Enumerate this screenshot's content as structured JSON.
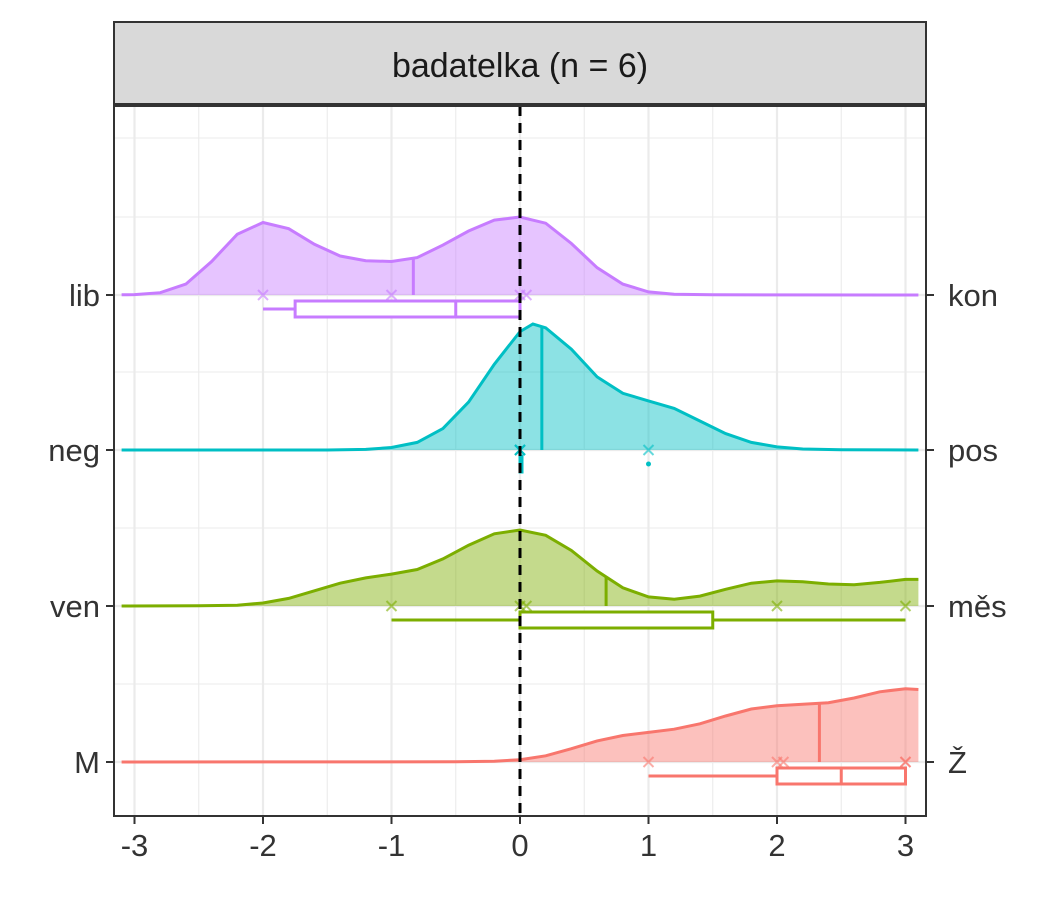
{
  "chart_data": {
    "type": "ridgeline",
    "panel_title": "badatelka (n = 6)",
    "x_ticks": [
      -3,
      -2,
      -1,
      0,
      1,
      2,
      3
    ],
    "xlim": [
      -3.1,
      3.1
    ],
    "reference_line_x": 0,
    "series": [
      {
        "left_label": "lib",
        "right_label": "kon",
        "color": "#C77CFF",
        "points": [
          -2,
          -1,
          0,
          0.05
        ],
        "mean": -0.83,
        "box": {
          "whisker_low": -2,
          "q1": -1.75,
          "median": -0.5,
          "q3": 0,
          "whisker_high": 0,
          "outliers": []
        },
        "density": [
          [
            -3.1,
            0.002
          ],
          [
            -3.0,
            0.005
          ],
          [
            -2.8,
            0.03
          ],
          [
            -2.6,
            0.14
          ],
          [
            -2.4,
            0.43
          ],
          [
            -2.2,
            0.78
          ],
          [
            -2.0,
            0.93
          ],
          [
            -1.8,
            0.85
          ],
          [
            -1.6,
            0.65
          ],
          [
            -1.4,
            0.5
          ],
          [
            -1.2,
            0.44
          ],
          [
            -1.0,
            0.43
          ],
          [
            -0.8,
            0.48
          ],
          [
            -0.6,
            0.64
          ],
          [
            -0.4,
            0.82
          ],
          [
            -0.2,
            0.96
          ],
          [
            0.0,
            1.0
          ],
          [
            0.2,
            0.92
          ],
          [
            0.4,
            0.66
          ],
          [
            0.6,
            0.35
          ],
          [
            0.8,
            0.14
          ],
          [
            1.0,
            0.04
          ],
          [
            1.2,
            0.01
          ],
          [
            1.5,
            0.002
          ],
          [
            3.1,
            0.0
          ]
        ]
      },
      {
        "left_label": "neg",
        "right_label": "pos",
        "color": "#00BFC4",
        "points": [
          0,
          0,
          0,
          0,
          1
        ],
        "mean": 0.17,
        "box": {
          "whisker_low": 0,
          "q1": 0,
          "median": 0,
          "q3": 0,
          "whisker_high": 0,
          "outliers": [
            1
          ]
        },
        "density": [
          [
            -3.1,
            0.0
          ],
          [
            -1.5,
            0.0
          ],
          [
            -1.2,
            0.005
          ],
          [
            -1.0,
            0.02
          ],
          [
            -0.8,
            0.06
          ],
          [
            -0.6,
            0.17
          ],
          [
            -0.4,
            0.38
          ],
          [
            -0.2,
            0.68
          ],
          [
            0.0,
            0.94
          ],
          [
            0.1,
            1.0
          ],
          [
            0.2,
            0.97
          ],
          [
            0.4,
            0.8
          ],
          [
            0.6,
            0.58
          ],
          [
            0.8,
            0.45
          ],
          [
            1.0,
            0.39
          ],
          [
            1.2,
            0.33
          ],
          [
            1.4,
            0.23
          ],
          [
            1.6,
            0.13
          ],
          [
            1.8,
            0.06
          ],
          [
            2.0,
            0.025
          ],
          [
            2.2,
            0.008
          ],
          [
            2.5,
            0.002
          ],
          [
            3.1,
            0.0
          ]
        ]
      },
      {
        "left_label": "ven",
        "right_label": "měs",
        "color": "#7CAE00",
        "points": [
          -1,
          0,
          0.05,
          2,
          3
        ],
        "mean": 0.67,
        "box": {
          "whisker_low": -1,
          "q1": 0,
          "median": 0,
          "q3": 1.5,
          "whisker_high": 3,
          "outliers": []
        },
        "density": [
          [
            -3.1,
            0.0
          ],
          [
            -2.5,
            0.002
          ],
          [
            -2.2,
            0.01
          ],
          [
            -2.0,
            0.04
          ],
          [
            -1.8,
            0.1
          ],
          [
            -1.6,
            0.2
          ],
          [
            -1.4,
            0.3
          ],
          [
            -1.2,
            0.37
          ],
          [
            -1.0,
            0.42
          ],
          [
            -0.8,
            0.48
          ],
          [
            -0.6,
            0.62
          ],
          [
            -0.4,
            0.8
          ],
          [
            -0.2,
            0.95
          ],
          [
            0.0,
            1.0
          ],
          [
            0.2,
            0.93
          ],
          [
            0.4,
            0.73
          ],
          [
            0.6,
            0.46
          ],
          [
            0.8,
            0.24
          ],
          [
            1.0,
            0.12
          ],
          [
            1.2,
            0.09
          ],
          [
            1.4,
            0.13
          ],
          [
            1.6,
            0.22
          ],
          [
            1.8,
            0.3
          ],
          [
            2.0,
            0.33
          ],
          [
            2.2,
            0.32
          ],
          [
            2.4,
            0.29
          ],
          [
            2.6,
            0.28
          ],
          [
            2.8,
            0.31
          ],
          [
            3.0,
            0.35
          ],
          [
            3.1,
            0.35
          ]
        ]
      },
      {
        "left_label": "M",
        "right_label": "Ž",
        "color": "#F8766D",
        "points": [
          1,
          2,
          2.05,
          3,
          3
        ],
        "mean": 2.33,
        "box": {
          "whisker_low": 1,
          "q1": 2,
          "median": 2.5,
          "q3": 3,
          "whisker_high": 3,
          "outliers": []
        },
        "density": [
          [
            -3.1,
            0.0
          ],
          [
            -0.5,
            0.002
          ],
          [
            -0.2,
            0.01
          ],
          [
            0.0,
            0.03
          ],
          [
            0.2,
            0.08
          ],
          [
            0.4,
            0.17
          ],
          [
            0.6,
            0.27
          ],
          [
            0.8,
            0.34
          ],
          [
            1.0,
            0.38
          ],
          [
            1.2,
            0.42
          ],
          [
            1.4,
            0.49
          ],
          [
            1.6,
            0.59
          ],
          [
            1.8,
            0.68
          ],
          [
            2.0,
            0.72
          ],
          [
            2.2,
            0.74
          ],
          [
            2.4,
            0.76
          ],
          [
            2.6,
            0.82
          ],
          [
            2.8,
            0.9
          ],
          [
            3.0,
            0.94
          ],
          [
            3.1,
            0.93
          ]
        ]
      }
    ]
  }
}
